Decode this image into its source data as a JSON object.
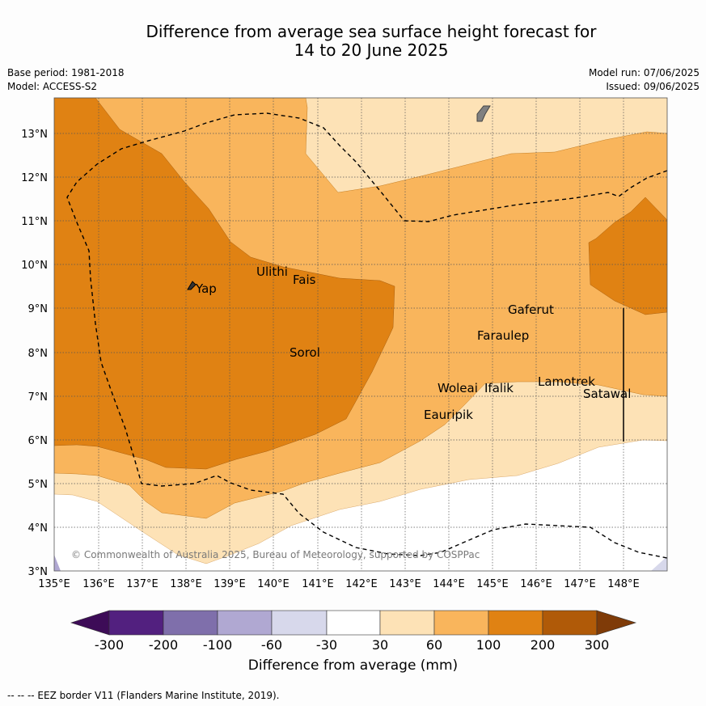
{
  "title": {
    "line1": "Difference from average sea surface height forecast for",
    "line2": "14 to 20 June 2025"
  },
  "meta": {
    "base_period": "Base period: 1981-2018",
    "model": "Model: ACCESS-S2",
    "model_run": "Model run: 07/06/2025",
    "issued": "Issued: 09/06/2025"
  },
  "map": {
    "lon_ticks": [
      "135°E",
      "136°E",
      "137°E",
      "138°E",
      "139°E",
      "140°E",
      "141°E",
      "142°E",
      "143°E",
      "144°E",
      "145°E",
      "146°E",
      "147°E",
      "148°E"
    ],
    "lat_ticks": [
      "3°N",
      "4°N",
      "5°N",
      "6°N",
      "7°N",
      "8°N",
      "9°N",
      "10°N",
      "11°N",
      "12°N",
      "13°N"
    ],
    "islands": [
      {
        "name": "Yap",
        "lon": 138.1,
        "lat": 9.5
      },
      {
        "name": "Ulithi",
        "lon": 139.7,
        "lat": 9.9
      },
      {
        "name": "Fais",
        "lon": 140.5,
        "lat": 9.75
      },
      {
        "name": "Sorol",
        "lon": 140.4,
        "lat": 8.1
      },
      {
        "name": "Gaferut",
        "lon": 145.3,
        "lat": 9.1
      },
      {
        "name": "Faraulep",
        "lon": 144.6,
        "lat": 8.55
      },
      {
        "name": "Woleai",
        "lon": 143.9,
        "lat": 7.35
      },
      {
        "name": "Ifalik",
        "lon": 144.6,
        "lat": 7.3
      },
      {
        "name": "Lamotrek",
        "lon": 146.1,
        "lat": 7.45
      },
      {
        "name": "Satawal",
        "lon": 147.1,
        "lat": 7.1
      },
      {
        "name": "Eauripik",
        "lon": 143.3,
        "lat": 6.7
      }
    ],
    "copyright": "© Commonwealth of Australia 2025, Bureau of Meteorology, supported by COSPPac"
  },
  "colorbar": {
    "title": "Difference from average (mm)",
    "tick_labels": [
      "-300",
      "-200",
      "-100",
      "-60",
      "-30",
      "30",
      "60",
      "100",
      "200",
      "300"
    ],
    "colors": [
      "#3d0c57",
      "#52207f",
      "#7f6fab",
      "#b0a8d2",
      "#d7d8eb",
      "#ffffff",
      "#fde2b6",
      "#f9b55c",
      "#e08213",
      "#b05a08",
      "#7f3b08"
    ]
  },
  "footer": "--  --  -- EEZ border V11 (Flanders Marine Institute, 2019)."
}
